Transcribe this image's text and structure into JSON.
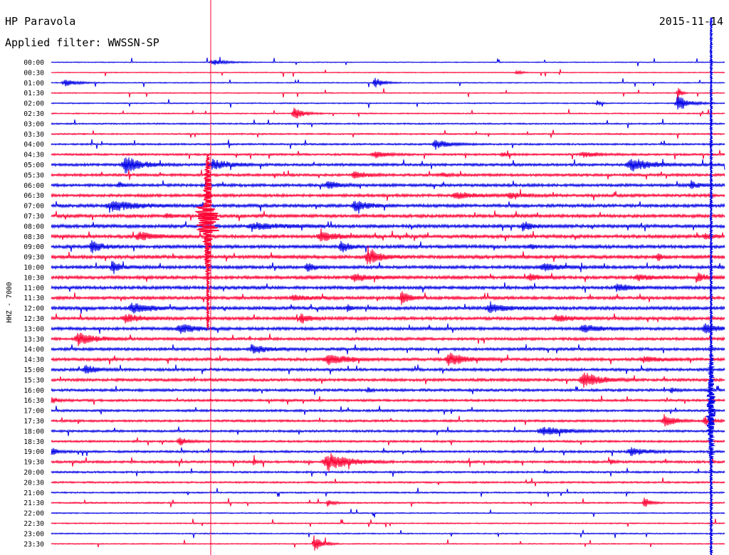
{
  "header": {
    "station": "HP Paravola",
    "date": "2015-11-14",
    "filter": "Applied filter: WWSSN-SP"
  },
  "chart_data": {
    "type": "line",
    "title": "HP Paravola",
    "date": "2015-11-14",
    "filter": "WWSSN-SP",
    "ylabel": "HHZ - 7000",
    "row_interval_minutes": 30,
    "colors": {
      "odd_rows": "#0000e6",
      "even_rows": "#ff0033",
      "marker": "#ff0033",
      "background": "#ffffff"
    },
    "rows": [
      {
        "label": "00:00",
        "color": "blue",
        "noise": 0.6,
        "events": [
          [
            0.24,
            4,
            0.018
          ]
        ]
      },
      {
        "label": "00:30",
        "color": "red",
        "noise": 0.6,
        "events": [
          [
            0.69,
            4,
            0.006
          ]
        ]
      },
      {
        "label": "01:00",
        "color": "blue",
        "noise": 0.7,
        "events": [
          [
            0.02,
            5,
            0.015
          ],
          [
            0.48,
            8,
            0.01
          ]
        ]
      },
      {
        "label": "01:30",
        "color": "red",
        "noise": 0.7,
        "events": [
          [
            0.93,
            12,
            0.004
          ]
        ]
      },
      {
        "label": "02:00",
        "color": "blue",
        "noise": 0.8,
        "events": [
          [
            0.93,
            12,
            0.014
          ],
          [
            0.81,
            5,
            0.004
          ]
        ]
      },
      {
        "label": "02:30",
        "color": "red",
        "noise": 0.8,
        "events": [
          [
            0.36,
            10,
            0.012
          ]
        ]
      },
      {
        "label": "03:00",
        "color": "blue",
        "noise": 1.0,
        "events": []
      },
      {
        "label": "03:30",
        "color": "red",
        "noise": 1.0,
        "events": []
      },
      {
        "label": "04:00",
        "color": "blue",
        "noise": 1.2,
        "events": [
          [
            0.57,
            7,
            0.018
          ]
        ]
      },
      {
        "label": "04:30",
        "color": "red",
        "noise": 1.4,
        "events": [
          [
            0.48,
            5,
            0.015
          ],
          [
            0.67,
            3,
            0.01
          ],
          [
            0.79,
            4,
            0.02
          ]
        ]
      },
      {
        "label": "05:00",
        "color": "blue",
        "noise": 1.8,
        "events": [
          [
            0.11,
            12,
            0.02
          ],
          [
            0.24,
            8,
            0.02
          ],
          [
            0.86,
            10,
            0.025
          ]
        ]
      },
      {
        "label": "05:30",
        "color": "red",
        "noise": 1.8,
        "events": [
          [
            0.45,
            6,
            0.015
          ],
          [
            0.58,
            3,
            0.01
          ]
        ]
      },
      {
        "label": "06:00",
        "color": "blue",
        "noise": 2.0,
        "events": [
          [
            0.41,
            7,
            0.012
          ],
          [
            0.1,
            5,
            0.006
          ],
          [
            0.95,
            6,
            0.01
          ]
        ]
      },
      {
        "label": "06:30",
        "color": "red",
        "noise": 2.0,
        "events": [
          [
            0.6,
            6,
            0.02
          ],
          [
            0.68,
            4,
            0.02
          ]
        ]
      },
      {
        "label": "07:00",
        "color": "blue",
        "noise": 2.2,
        "events": [
          [
            0.09,
            8,
            0.03
          ],
          [
            0.45,
            9,
            0.015
          ]
        ]
      },
      {
        "label": "07:30",
        "color": "red",
        "noise": 2.2,
        "events": [
          [
            0.17,
            3,
            0.01
          ]
        ]
      },
      {
        "label": "08:00",
        "color": "blue",
        "noise": 2.3,
        "events": [
          [
            0.3,
            5,
            0.03
          ],
          [
            0.7,
            8,
            0.01
          ]
        ]
      },
      {
        "label": "08:30",
        "color": "red",
        "noise": 2.3,
        "events": [
          [
            0.13,
            6,
            0.02
          ],
          [
            0.4,
            7,
            0.02
          ],
          [
            0.97,
            4,
            0.01
          ]
        ]
      },
      {
        "label": "09:00",
        "color": "blue",
        "noise": 2.3,
        "events": [
          [
            0.06,
            10,
            0.012
          ],
          [
            0.43,
            9,
            0.01
          ],
          [
            0.71,
            3,
            0.01
          ]
        ]
      },
      {
        "label": "09:30",
        "color": "red",
        "noise": 2.4,
        "events": [
          [
            0.47,
            12,
            0.015
          ],
          [
            0.9,
            6,
            0.005
          ]
        ]
      },
      {
        "label": "10:00",
        "color": "blue",
        "noise": 2.2,
        "events": [
          [
            0.09,
            8,
            0.01
          ],
          [
            0.38,
            6,
            0.01
          ],
          [
            0.73,
            5,
            0.02
          ]
        ]
      },
      {
        "label": "10:30",
        "color": "red",
        "noise": 2.2,
        "events": [
          [
            0.45,
            5,
            0.02
          ],
          [
            0.71,
            6,
            0.01
          ],
          [
            0.96,
            7,
            0.01
          ],
          [
            0.87,
            4,
            0.02
          ]
        ]
      },
      {
        "label": "11:00",
        "color": "blue",
        "noise": 2.2,
        "events": [
          [
            0.84,
            6,
            0.015
          ]
        ]
      },
      {
        "label": "11:30",
        "color": "red",
        "noise": 2.1,
        "events": [
          [
            0.52,
            11,
            0.01
          ],
          [
            0.36,
            4,
            0.02
          ]
        ]
      },
      {
        "label": "12:00",
        "color": "blue",
        "noise": 2.3,
        "events": [
          [
            0.12,
            8,
            0.02
          ],
          [
            0.44,
            6,
            0.005
          ],
          [
            0.65,
            6,
            0.02
          ]
        ]
      },
      {
        "label": "12:30",
        "color": "red",
        "noise": 2.1,
        "events": [
          [
            0.37,
            9,
            0.01
          ],
          [
            0.11,
            6,
            0.02
          ],
          [
            0.75,
            5,
            0.02
          ]
        ]
      },
      {
        "label": "13:00",
        "color": "blue",
        "noise": 2.1,
        "events": [
          [
            0.19,
            7,
            0.02
          ],
          [
            0.79,
            6,
            0.02
          ],
          [
            0.97,
            7,
            0.015
          ]
        ]
      },
      {
        "label": "13:30",
        "color": "red",
        "noise": 1.9,
        "events": [
          [
            0.04,
            10,
            0.02
          ]
        ]
      },
      {
        "label": "14:00",
        "color": "blue",
        "noise": 1.9,
        "events": [
          [
            0.3,
            6,
            0.02
          ]
        ]
      },
      {
        "label": "14:30",
        "color": "red",
        "noise": 2.0,
        "events": [
          [
            0.41,
            8,
            0.025
          ],
          [
            0.59,
            10,
            0.02
          ],
          [
            0.88,
            4,
            0.02
          ]
        ]
      },
      {
        "label": "15:00",
        "color": "blue",
        "noise": 1.9,
        "events": [
          [
            0.05,
            8,
            0.012
          ]
        ]
      },
      {
        "label": "15:30",
        "color": "red",
        "noise": 1.9,
        "events": [
          [
            0.79,
            12,
            0.02
          ]
        ]
      },
      {
        "label": "16:00",
        "color": "blue",
        "noise": 1.8,
        "events": [
          [
            0.47,
            5,
            0.005
          ],
          [
            0.92,
            5,
            0.005
          ]
        ]
      },
      {
        "label": "16:30",
        "color": "red",
        "noise": 1.6,
        "events": [
          [
            0.0,
            4,
            0.01
          ]
        ]
      },
      {
        "label": "17:00",
        "color": "blue",
        "noise": 1.5,
        "events": []
      },
      {
        "label": "17:30",
        "color": "red",
        "noise": 1.5,
        "events": [
          [
            0.91,
            10,
            0.012
          ],
          [
            0.97,
            7,
            0.008
          ]
        ]
      },
      {
        "label": "18:00",
        "color": "blue",
        "noise": 1.5,
        "events": [
          [
            0.73,
            6,
            0.03
          ]
        ]
      },
      {
        "label": "18:30",
        "color": "red",
        "noise": 1.4,
        "events": [
          [
            0.19,
            6,
            0.01
          ]
        ]
      },
      {
        "label": "19:00",
        "color": "blue",
        "noise": 1.5,
        "events": [
          [
            0.0,
            6,
            0.008
          ],
          [
            0.86,
            6,
            0.02
          ]
        ]
      },
      {
        "label": "19:30",
        "color": "red",
        "noise": 1.6,
        "events": [
          [
            0.41,
            14,
            0.025
          ],
          [
            0.3,
            4,
            0.005
          ],
          [
            0.83,
            4,
            0.005
          ]
        ]
      },
      {
        "label": "20:00",
        "color": "blue",
        "noise": 1.3,
        "events": []
      },
      {
        "label": "20:30",
        "color": "red",
        "noise": 1.2,
        "events": []
      },
      {
        "label": "21:00",
        "color": "blue",
        "noise": 1.0,
        "events": []
      },
      {
        "label": "21:30",
        "color": "red",
        "noise": 1.0,
        "events": [
          [
            0.41,
            5,
            0.008
          ],
          [
            0.88,
            8,
            0.008
          ]
        ]
      },
      {
        "label": "22:00",
        "color": "blue",
        "noise": 0.8,
        "events": []
      },
      {
        "label": "22:30",
        "color": "red",
        "noise": 0.8,
        "events": []
      },
      {
        "label": "23:00",
        "color": "blue",
        "noise": 0.8,
        "events": []
      },
      {
        "label": "23:30",
        "color": "red",
        "noise": 0.7,
        "events": [
          [
            0.39,
            14,
            0.01
          ]
        ]
      }
    ],
    "major_event": {
      "time": "05:00",
      "description": "large red vertical signal crossing many rows"
    },
    "current_time_marker": "17:00"
  }
}
